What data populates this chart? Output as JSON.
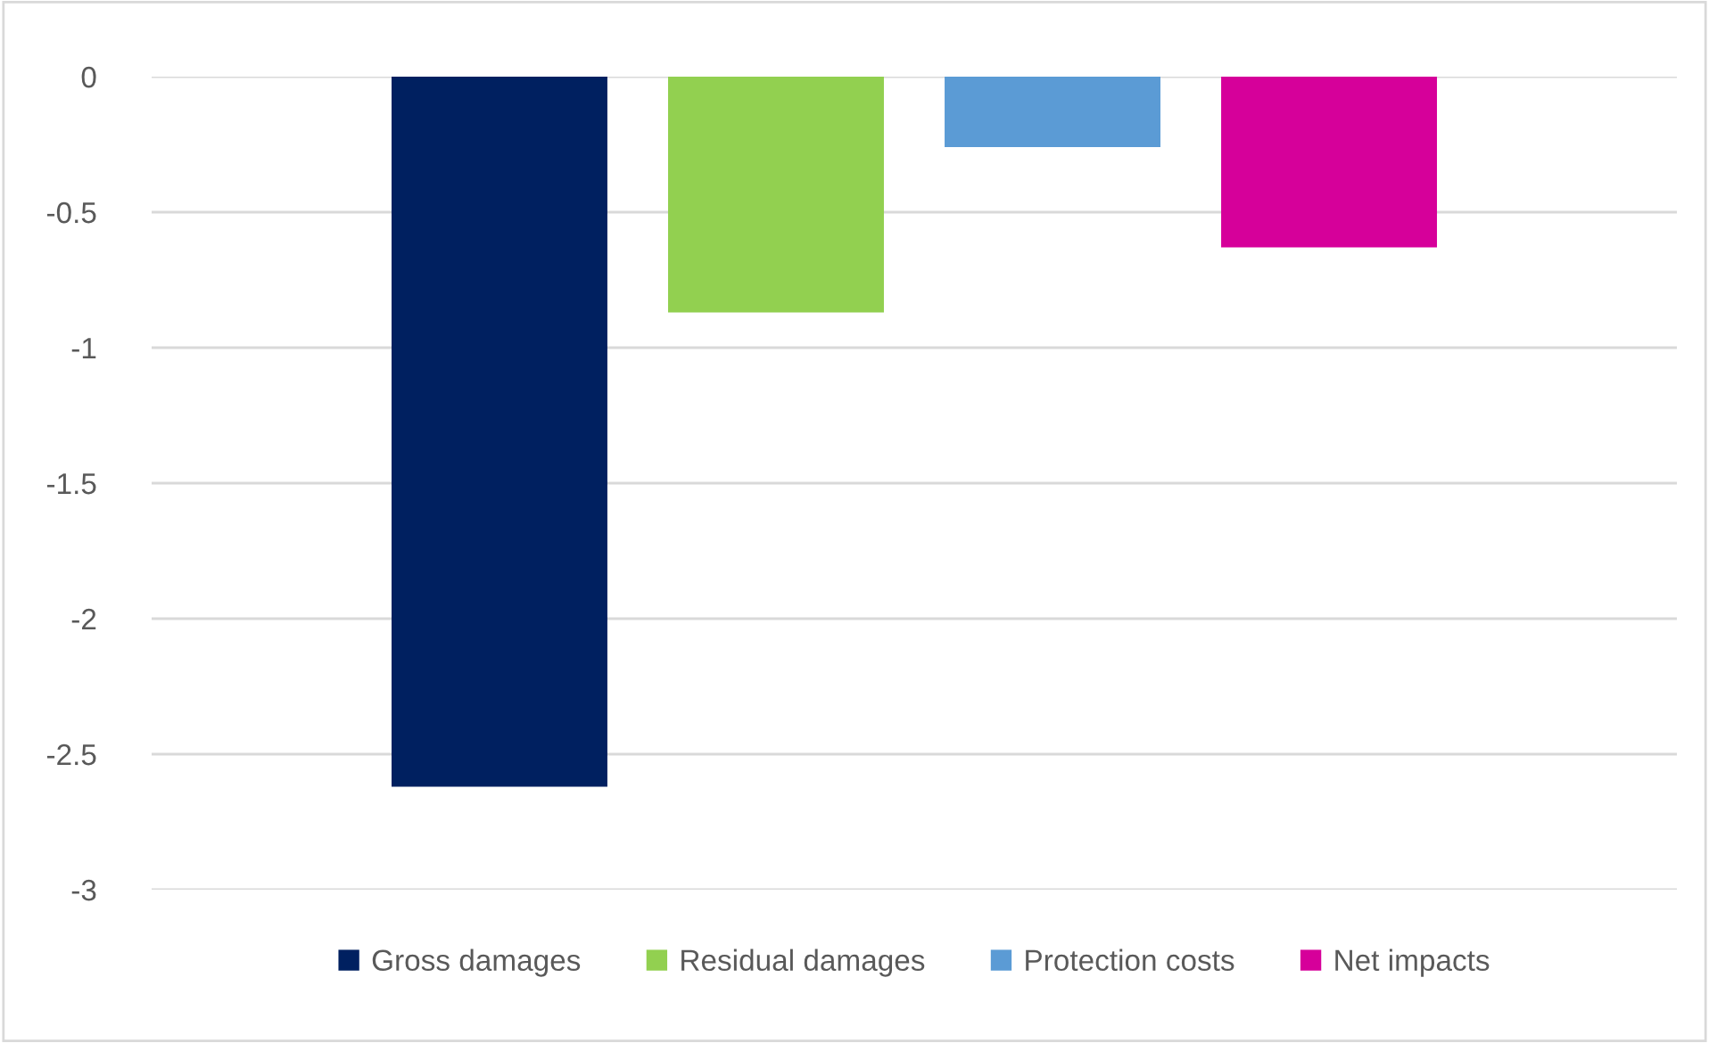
{
  "chart_data": {
    "type": "bar",
    "categories": [
      null
    ],
    "series": [
      {
        "name": "Gross damages",
        "color": "#002060",
        "values": [
          -2.62
        ]
      },
      {
        "name": "Residual damages",
        "color": "#92d050",
        "values": [
          -0.87
        ]
      },
      {
        "name": "Protection costs",
        "color": "#5b9bd5",
        "values": [
          -0.26
        ]
      },
      {
        "name": "Net impacts",
        "color": "#d6009a",
        "values": [
          -0.63
        ]
      }
    ],
    "ylim": [
      -3,
      0
    ],
    "yticks": [
      {
        "value": -3,
        "label": "-3"
      },
      {
        "value": -2.5,
        "label": "-2.5"
      },
      {
        "value": -2,
        "label": "-2"
      },
      {
        "value": -1.5,
        "label": "-1.5"
      },
      {
        "value": -1,
        "label": "-1"
      },
      {
        "value": -0.5,
        "label": "-0.5"
      },
      {
        "value": 0,
        "label": "0"
      }
    ],
    "grid": "y",
    "legend": "bottom"
  }
}
